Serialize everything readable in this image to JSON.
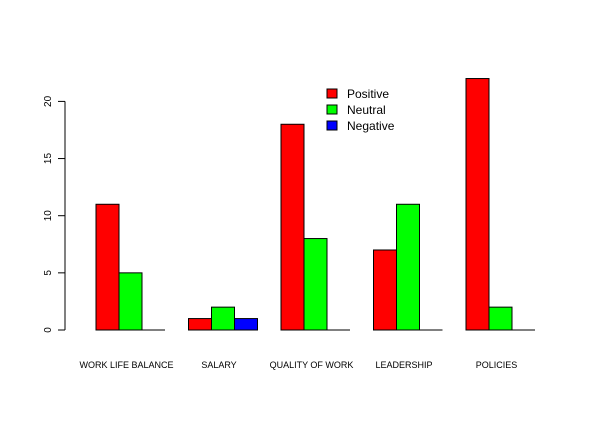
{
  "chart_data": {
    "type": "bar",
    "categories": [
      "WORK LIFE BALANCE",
      "SALARY",
      "QUALITY OF WORK",
      "LEADERSHIP",
      "POLICIES"
    ],
    "series": [
      {
        "name": "Positive",
        "color": "#ff0000",
        "values": [
          11,
          1,
          18,
          7,
          22
        ]
      },
      {
        "name": "Neutral",
        "color": "#00ff00",
        "values": [
          5,
          2,
          8,
          11,
          2
        ]
      },
      {
        "name": "Negative",
        "color": "#0000ff",
        "values": [
          0,
          1,
          0,
          0,
          0
        ]
      }
    ],
    "yticks": [
      0,
      5,
      10,
      15,
      20
    ],
    "ylim": [
      0,
      22
    ],
    "title": "",
    "xlabel": "",
    "ylabel": "",
    "grid": false,
    "legend_position": "top-center"
  }
}
